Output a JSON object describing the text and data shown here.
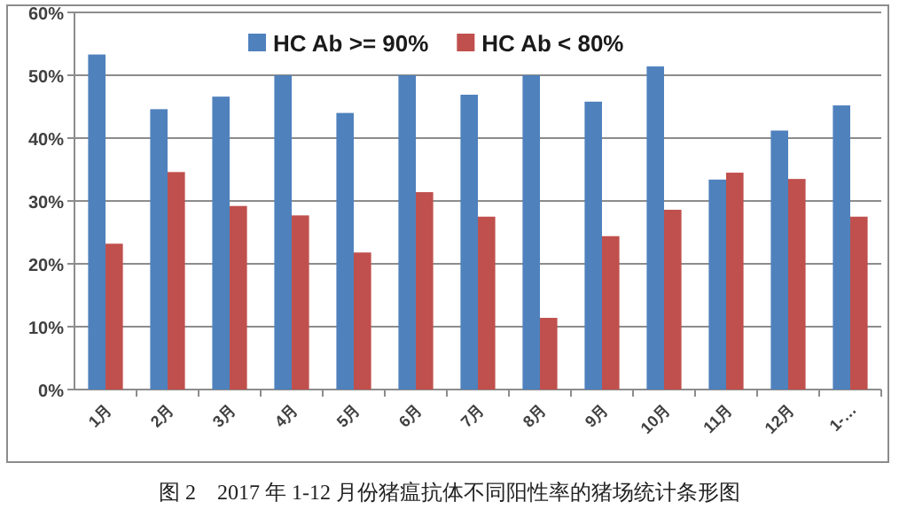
{
  "chart_data": {
    "type": "bar",
    "categories": [
      "1月",
      "2月",
      "3月",
      "4月",
      "5月",
      "6月",
      "7月",
      "8月",
      "9月",
      "10月",
      "11月",
      "12月",
      "1-…"
    ],
    "series": [
      {
        "name": "HC Ab >= 90%",
        "color": "#4f81bd",
        "values": [
          53.3,
          44.6,
          46.6,
          50,
          44,
          50,
          46.9,
          50,
          45.8,
          51.4,
          33.4,
          41.2,
          45.2
        ]
      },
      {
        "name": "HC Ab < 80%",
        "color": "#c0504d",
        "values": [
          23.2,
          34.6,
          29.2,
          27.7,
          21.8,
          31.4,
          27.5,
          11.4,
          24.4,
          28.6,
          34.5,
          33.5,
          27.5
        ]
      }
    ],
    "ylim": [
      0,
      60
    ],
    "yticks": [
      {
        "value": 0,
        "label": "0%"
      },
      {
        "value": 10,
        "label": "10%"
      },
      {
        "value": 20,
        "label": "20%"
      },
      {
        "value": 30,
        "label": "30%"
      },
      {
        "value": 40,
        "label": "40%"
      },
      {
        "value": 50,
        "label": "50%"
      },
      {
        "value": 60,
        "label": "60%"
      }
    ],
    "grid": "y",
    "legend": "top",
    "annotations": [
      "图 2　2017 年 1-12 月份猪瘟抗体不同阳性率的猪场统计条形图"
    ]
  }
}
